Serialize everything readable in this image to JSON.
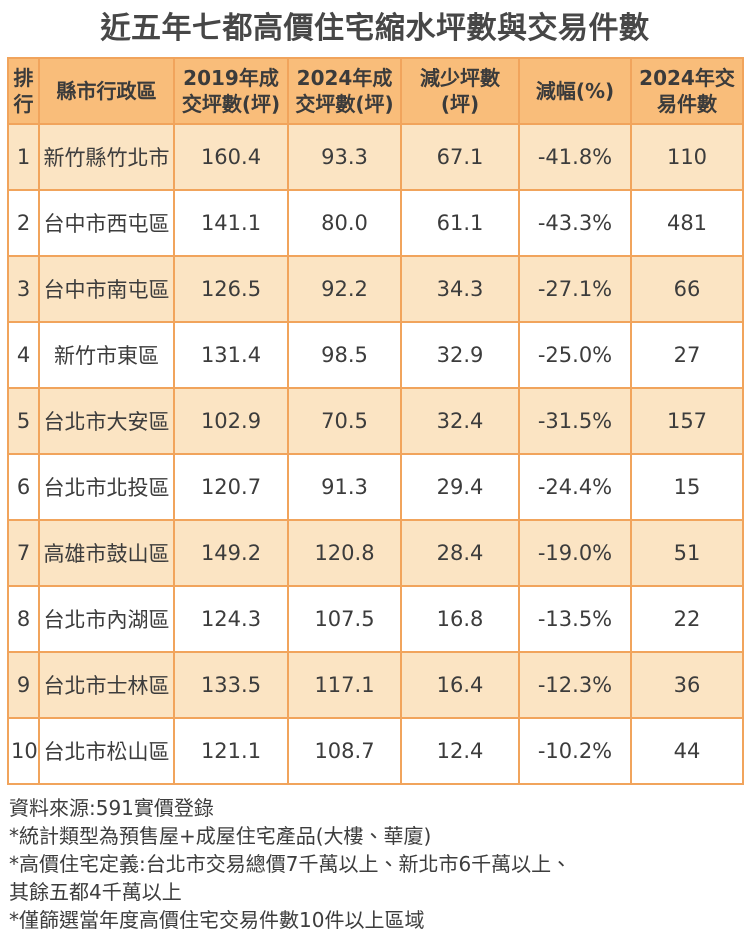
{
  "title": "近五年七都高價住宅縮水坪數與交易件數",
  "chart_data": {
    "type": "table",
    "title": "近五年七都高價住宅縮水坪數與交易件數",
    "columns": [
      "排\n行",
      "縣市行政區",
      "2019年成\n交坪數(坪)",
      "2024年成\n交坪數(坪)",
      "減少坪數\n(坪)",
      "減幅(%)",
      "2024年交\n易件數"
    ],
    "rows": [
      [
        "1",
        "新竹縣竹北市",
        "160.4",
        "93.3",
        "67.1",
        "-41.8%",
        "110"
      ],
      [
        "2",
        "台中市西屯區",
        "141.1",
        "80.0",
        "61.1",
        "-43.3%",
        "481"
      ],
      [
        "3",
        "台中市南屯區",
        "126.5",
        "92.2",
        "34.3",
        "-27.1%",
        "66"
      ],
      [
        "4",
        "新竹市東區",
        "131.4",
        "98.5",
        "32.9",
        "-25.0%",
        "27"
      ],
      [
        "5",
        "台北市大安區",
        "102.9",
        "70.5",
        "32.4",
        "-31.5%",
        "157"
      ],
      [
        "6",
        "台北市北投區",
        "120.7",
        "91.3",
        "29.4",
        "-24.4%",
        "15"
      ],
      [
        "7",
        "高雄市鼓山區",
        "149.2",
        "120.8",
        "28.4",
        "-19.0%",
        "51"
      ],
      [
        "8",
        "台北市內湖區",
        "124.3",
        "107.5",
        "16.8",
        "-13.5%",
        "22"
      ],
      [
        "9",
        "台北市士林區",
        "133.5",
        "117.1",
        "16.4",
        "-12.3%",
        "36"
      ],
      [
        "10",
        "台北市松山區",
        "121.1",
        "108.7",
        "12.4",
        "-10.2%",
        "44"
      ]
    ]
  },
  "footer": {
    "lines": [
      "資料來源:591實價登錄",
      "*統計類型為預售屋+成屋住宅產品(大樓、華廈)",
      "*高價住宅定義:台北市交易總價7千萬以上、新北市6千萬以上、",
      "其餘五都4千萬以上",
      "*僅篩選當年度高價住宅交易件數10件以上區域"
    ]
  },
  "colors": {
    "header_bg": "#F9BD7A",
    "stripe_bg": "#FBE4C3",
    "row_bg": "#FFFFFF",
    "border": "#F1A45C",
    "body_text": "#3C3C3C",
    "title_text": "#474747"
  }
}
